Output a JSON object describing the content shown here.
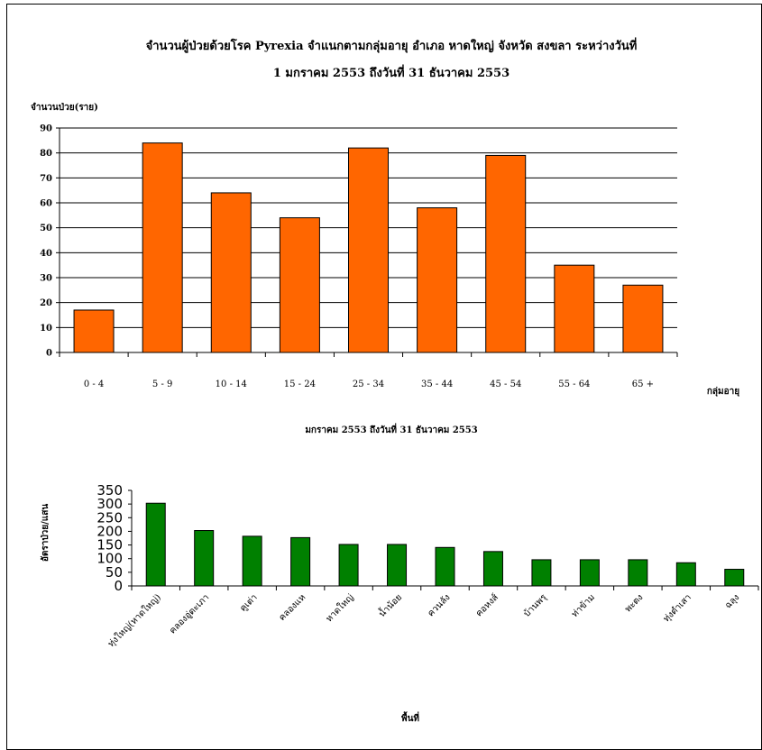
{
  "chart_data": [
    {
      "type": "bar",
      "title": "จำนวนผู้ป่วยด้วยโรค Pyrexia จำแนกตามกลุ่มอายุ   อำเภอ  หาดใหญ่ จังหวัด สงขลา  ระหว่างวันที่",
      "subtitle": "1 มกราคม 2553  ถึงวันที่  31 ธันวาคม 2553",
      "ylabel": "จำนวนป่วย(ราย)",
      "xlabel": "กลุ่มอายุ",
      "categories": [
        "0 - 4",
        "5 - 9",
        "10 - 14",
        "15 - 24",
        "25 - 34",
        "35 - 44",
        "45 - 54",
        "55 - 64",
        "65 +"
      ],
      "values": [
        17,
        84,
        64,
        54,
        82,
        58,
        79,
        35,
        27
      ],
      "ylim": [
        0,
        90
      ],
      "yticks": [
        0,
        10,
        20,
        30,
        40,
        50,
        60,
        70,
        80,
        90
      ],
      "grid": true,
      "legend": "none",
      "color": "#ff6600"
    },
    {
      "type": "bar",
      "title": "มกราคม 2553 ถึงวันที่  31 ธันวาคม 2553",
      "ylabel": "อัตราป่วย/แสน",
      "xlabel": "พื้นที่",
      "categories": [
        "ทุ่งใหญ่(หาดใหญ่)",
        "คลองอู่ตะเภา",
        "คูเต่า",
        "คลองแห",
        "หาดใหญ่",
        "น้ำน้อย",
        "ควนลัง",
        "คอหงส์",
        "บ้านพรุ",
        "ท่าข้าม",
        "พะตง",
        "ทุ่งตำเสา",
        "ฉลุง"
      ],
      "values": [
        303,
        203,
        182,
        177,
        152,
        152,
        141,
        126,
        96,
        96,
        96,
        85,
        61
      ],
      "ylim": [
        0,
        350
      ],
      "yticks": [
        0,
        50,
        100,
        150,
        200,
        250,
        300,
        350
      ],
      "grid": false,
      "legend": "none",
      "color": "#008000"
    }
  ]
}
